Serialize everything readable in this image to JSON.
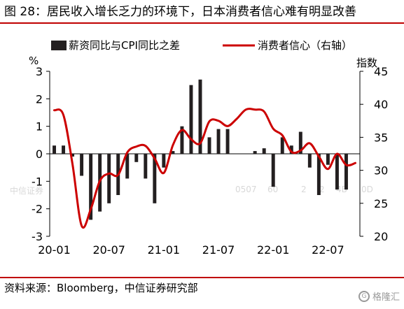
{
  "title": "图 28：居民收入增长乏力的环境下，日本消费者信心难有明显改善",
  "source": "资料来源：Bloomberg，中信证券研究部",
  "watermark": {
    "texts": [
      "中信证券",
      "0507",
      "60",
      "2",
      "2",
      "4B",
      "0D"
    ],
    "logo_text": "格隆汇",
    "logo_mark": "G"
  },
  "colors": {
    "bars": "#231f20",
    "line": "#cc0000",
    "rule": "#c00000"
  },
  "chart_data": {
    "type": "bar+line",
    "months": [
      "20-01",
      "20-02",
      "20-03",
      "20-04",
      "20-05",
      "20-06",
      "20-07",
      "20-08",
      "20-09",
      "20-10",
      "20-11",
      "20-12",
      "21-01",
      "21-02",
      "21-03",
      "21-04",
      "21-05",
      "21-06",
      "21-07",
      "21-08",
      "21-09",
      "21-10",
      "21-11",
      "21-12",
      "22-01",
      "22-02",
      "22-03",
      "22-04",
      "22-05",
      "22-06",
      "22-07",
      "22-08",
      "22-09",
      "22-10"
    ],
    "x_tick_labels": [
      "20-01",
      "20-07",
      "21-01",
      "21-07",
      "22-01",
      "22-07"
    ],
    "left_axis": {
      "unit_label": "%",
      "min": -3,
      "max": 3,
      "ticks": [
        -3,
        -2,
        -1,
        0,
        1,
        2,
        3
      ]
    },
    "right_axis": {
      "unit_label": "指数",
      "min": 20,
      "max": 45,
      "ticks": [
        20,
        25,
        30,
        35,
        40,
        45
      ]
    },
    "series": [
      {
        "name": "薪资同比与CPI同比之差",
        "type": "bar",
        "axis": "left",
        "values": [
          0.3,
          0.3,
          -0.1,
          -0.8,
          -2.4,
          -2.1,
          -1.8,
          -1.5,
          -0.9,
          -0.3,
          -0.9,
          -1.8,
          -0.5,
          0.1,
          1.0,
          2.5,
          2.7,
          0.6,
          0.9,
          0.9,
          0,
          0,
          0.1,
          0.2,
          -1.2,
          0.6,
          0.3,
          0.8,
          -0.5,
          -1.5,
          -0.4,
          -1.3,
          -1.3,
          0
        ]
      },
      {
        "name": "消费者信心（右轴）",
        "type": "line",
        "axis": "right",
        "values": [
          39.1,
          38.4,
          30.9,
          21.6,
          24.1,
          28.4,
          29.5,
          29.3,
          32.7,
          33.6,
          33.7,
          31.8,
          29.6,
          33.8,
          36.1,
          34.7,
          34.1,
          37.4,
          37.5,
          36.7,
          37.8,
          39.2,
          39.2,
          38.9,
          36.3,
          35.3,
          32.8,
          33.0,
          34.1,
          32.1,
          30.2,
          32.5,
          30.8,
          31.1
        ]
      }
    ],
    "legend": {
      "placement": "top",
      "items": [
        "薪资同比与CPI同比之差",
        "消费者信心（右轴）"
      ]
    }
  }
}
